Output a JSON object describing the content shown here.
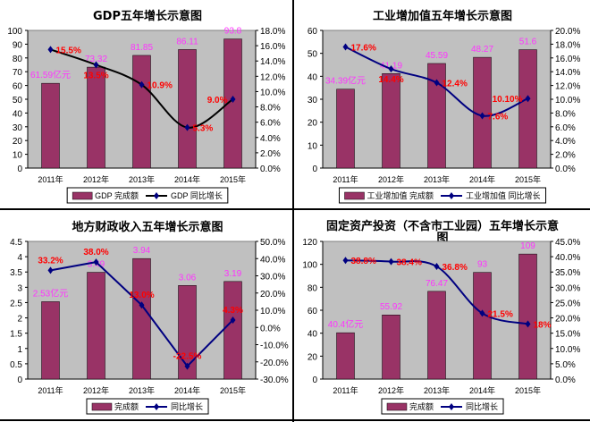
{
  "colors": {
    "bar": "#993366",
    "plot_bg": "#C0C0C0",
    "value_label": "#FF33FF",
    "pct_label": "#FF0000"
  },
  "chart_data": [
    {
      "type": "bar+line",
      "title": "GDP五年增长示意图",
      "categories": [
        "2011年",
        "2012年",
        "2013年",
        "2014年",
        "2015年"
      ],
      "series": [
        {
          "name": "GDP 完成额",
          "type": "bar",
          "axis": "left",
          "values": [
            61.59,
            73.32,
            81.85,
            86.11,
            93.8
          ],
          "labels": [
            "61.59亿元",
            "73.32",
            "81.85",
            "86.11",
            "93.8"
          ]
        },
        {
          "name": "GDP 同比增长",
          "type": "line",
          "axis": "right",
          "values": [
            15.5,
            13.5,
            10.9,
            5.3,
            9.0
          ],
          "labels": [
            "15.5%",
            "13.5%",
            "10.9%",
            "5.3%",
            "9.0%"
          ],
          "color": "#000000"
        }
      ],
      "ylim": [
        0,
        100
      ],
      "yticks": [
        "0",
        "10",
        "20",
        "30",
        "40",
        "50",
        "60",
        "70",
        "80",
        "90",
        "100"
      ],
      "y2lim": [
        0,
        18
      ],
      "y2ticks": [
        "0.0%",
        "2.0%",
        "4.0%",
        "6.0%",
        "8.0%",
        "10.0%",
        "12.0%",
        "14.0%",
        "16.0%",
        "18.0%"
      ],
      "legend": "bottom"
    },
    {
      "type": "bar+line",
      "title": "工业增加值五年增长示意图",
      "categories": [
        "2011年",
        "2012年",
        "2013年",
        "2014年",
        "2015年"
      ],
      "series": [
        {
          "name": "工业增加值 完成额",
          "type": "bar",
          "axis": "left",
          "values": [
            34.39,
            41.19,
            45.59,
            48.27,
            51.6
          ],
          "labels": [
            "34.39亿元",
            "41.19",
            "45.59",
            "48.27",
            "51.6"
          ]
        },
        {
          "name": "工业增加值 同比增长",
          "type": "line",
          "axis": "right",
          "values": [
            17.6,
            14.4,
            12.4,
            7.6,
            10.1
          ],
          "labels": [
            "17.6%",
            "14.4%",
            "12.4%",
            "7.6%",
            "10.10%"
          ],
          "color": "#000080"
        }
      ],
      "ylim": [
        0,
        60
      ],
      "yticks": [
        "0",
        "10",
        "20",
        "30",
        "40",
        "50",
        "60"
      ],
      "y2lim": [
        0,
        20
      ],
      "y2ticks": [
        "0.0%",
        "2.0%",
        "4.0%",
        "6.0%",
        "8.0%",
        "10.0%",
        "12.0%",
        "14.0%",
        "16.0%",
        "18.0%",
        "20.0%"
      ],
      "legend": "bottom"
    },
    {
      "type": "bar+line",
      "title": "地方财政收入五年增长示意图",
      "categories": [
        "2011年",
        "2012年",
        "2013年",
        "2014年",
        "2015年"
      ],
      "series": [
        {
          "name": "完成额",
          "type": "bar",
          "axis": "left",
          "values": [
            2.53,
            3.49,
            3.94,
            3.06,
            3.19
          ],
          "labels": [
            "2.53亿元",
            "3.49",
            "3.94",
            "3.06",
            "3.19"
          ]
        },
        {
          "name": "同比增长",
          "type": "line",
          "axis": "right",
          "values": [
            33.2,
            38.0,
            13.0,
            -22.5,
            4.3
          ],
          "labels": [
            "33.2%",
            "38.0%",
            "13.0%",
            "-22.5%",
            "4.3%"
          ],
          "color": "#000080"
        }
      ],
      "ylim": [
        0,
        4.5
      ],
      "yticks": [
        "0",
        "0.5",
        "1",
        "1.5",
        "2",
        "2.5",
        "3",
        "3.5",
        "4",
        "4.5"
      ],
      "y2lim": [
        -30,
        50
      ],
      "y2ticks": [
        "-30.0%",
        "-20.0%",
        "-10.0%",
        "0.0%",
        "10.0%",
        "20.0%",
        "30.0%",
        "40.0%",
        "50.0%"
      ],
      "legend": "bottom"
    },
    {
      "type": "bar+line",
      "title": "固定资产投资（不含市工业园）五年增长示意图",
      "categories": [
        "2011年",
        "2012年",
        "2013年",
        "2014年",
        "2015年"
      ],
      "series": [
        {
          "name": "完成额",
          "type": "bar",
          "axis": "left",
          "values": [
            40.4,
            55.92,
            76.47,
            93,
            109
          ],
          "labels": [
            "40.4亿元",
            "55.92",
            "76.47",
            "93",
            "109"
          ]
        },
        {
          "name": "同比增长",
          "type": "line",
          "axis": "right",
          "values": [
            38.8,
            38.4,
            36.8,
            21.5,
            18
          ],
          "labels": [
            "38.8%",
            "38.4%",
            "36.8%",
            "21.5%",
            "18%"
          ],
          "color": "#000080"
        }
      ],
      "ylim": [
        0,
        120
      ],
      "yticks": [
        "0",
        "20",
        "40",
        "60",
        "80",
        "100",
        "120"
      ],
      "y2lim": [
        0,
        45
      ],
      "y2ticks": [
        "0.0%",
        "5.0%",
        "10.0%",
        "15.0%",
        "20.0%",
        "25.0%",
        "30.0%",
        "35.0%",
        "40.0%",
        "45.0%"
      ],
      "legend": "bottom"
    }
  ]
}
